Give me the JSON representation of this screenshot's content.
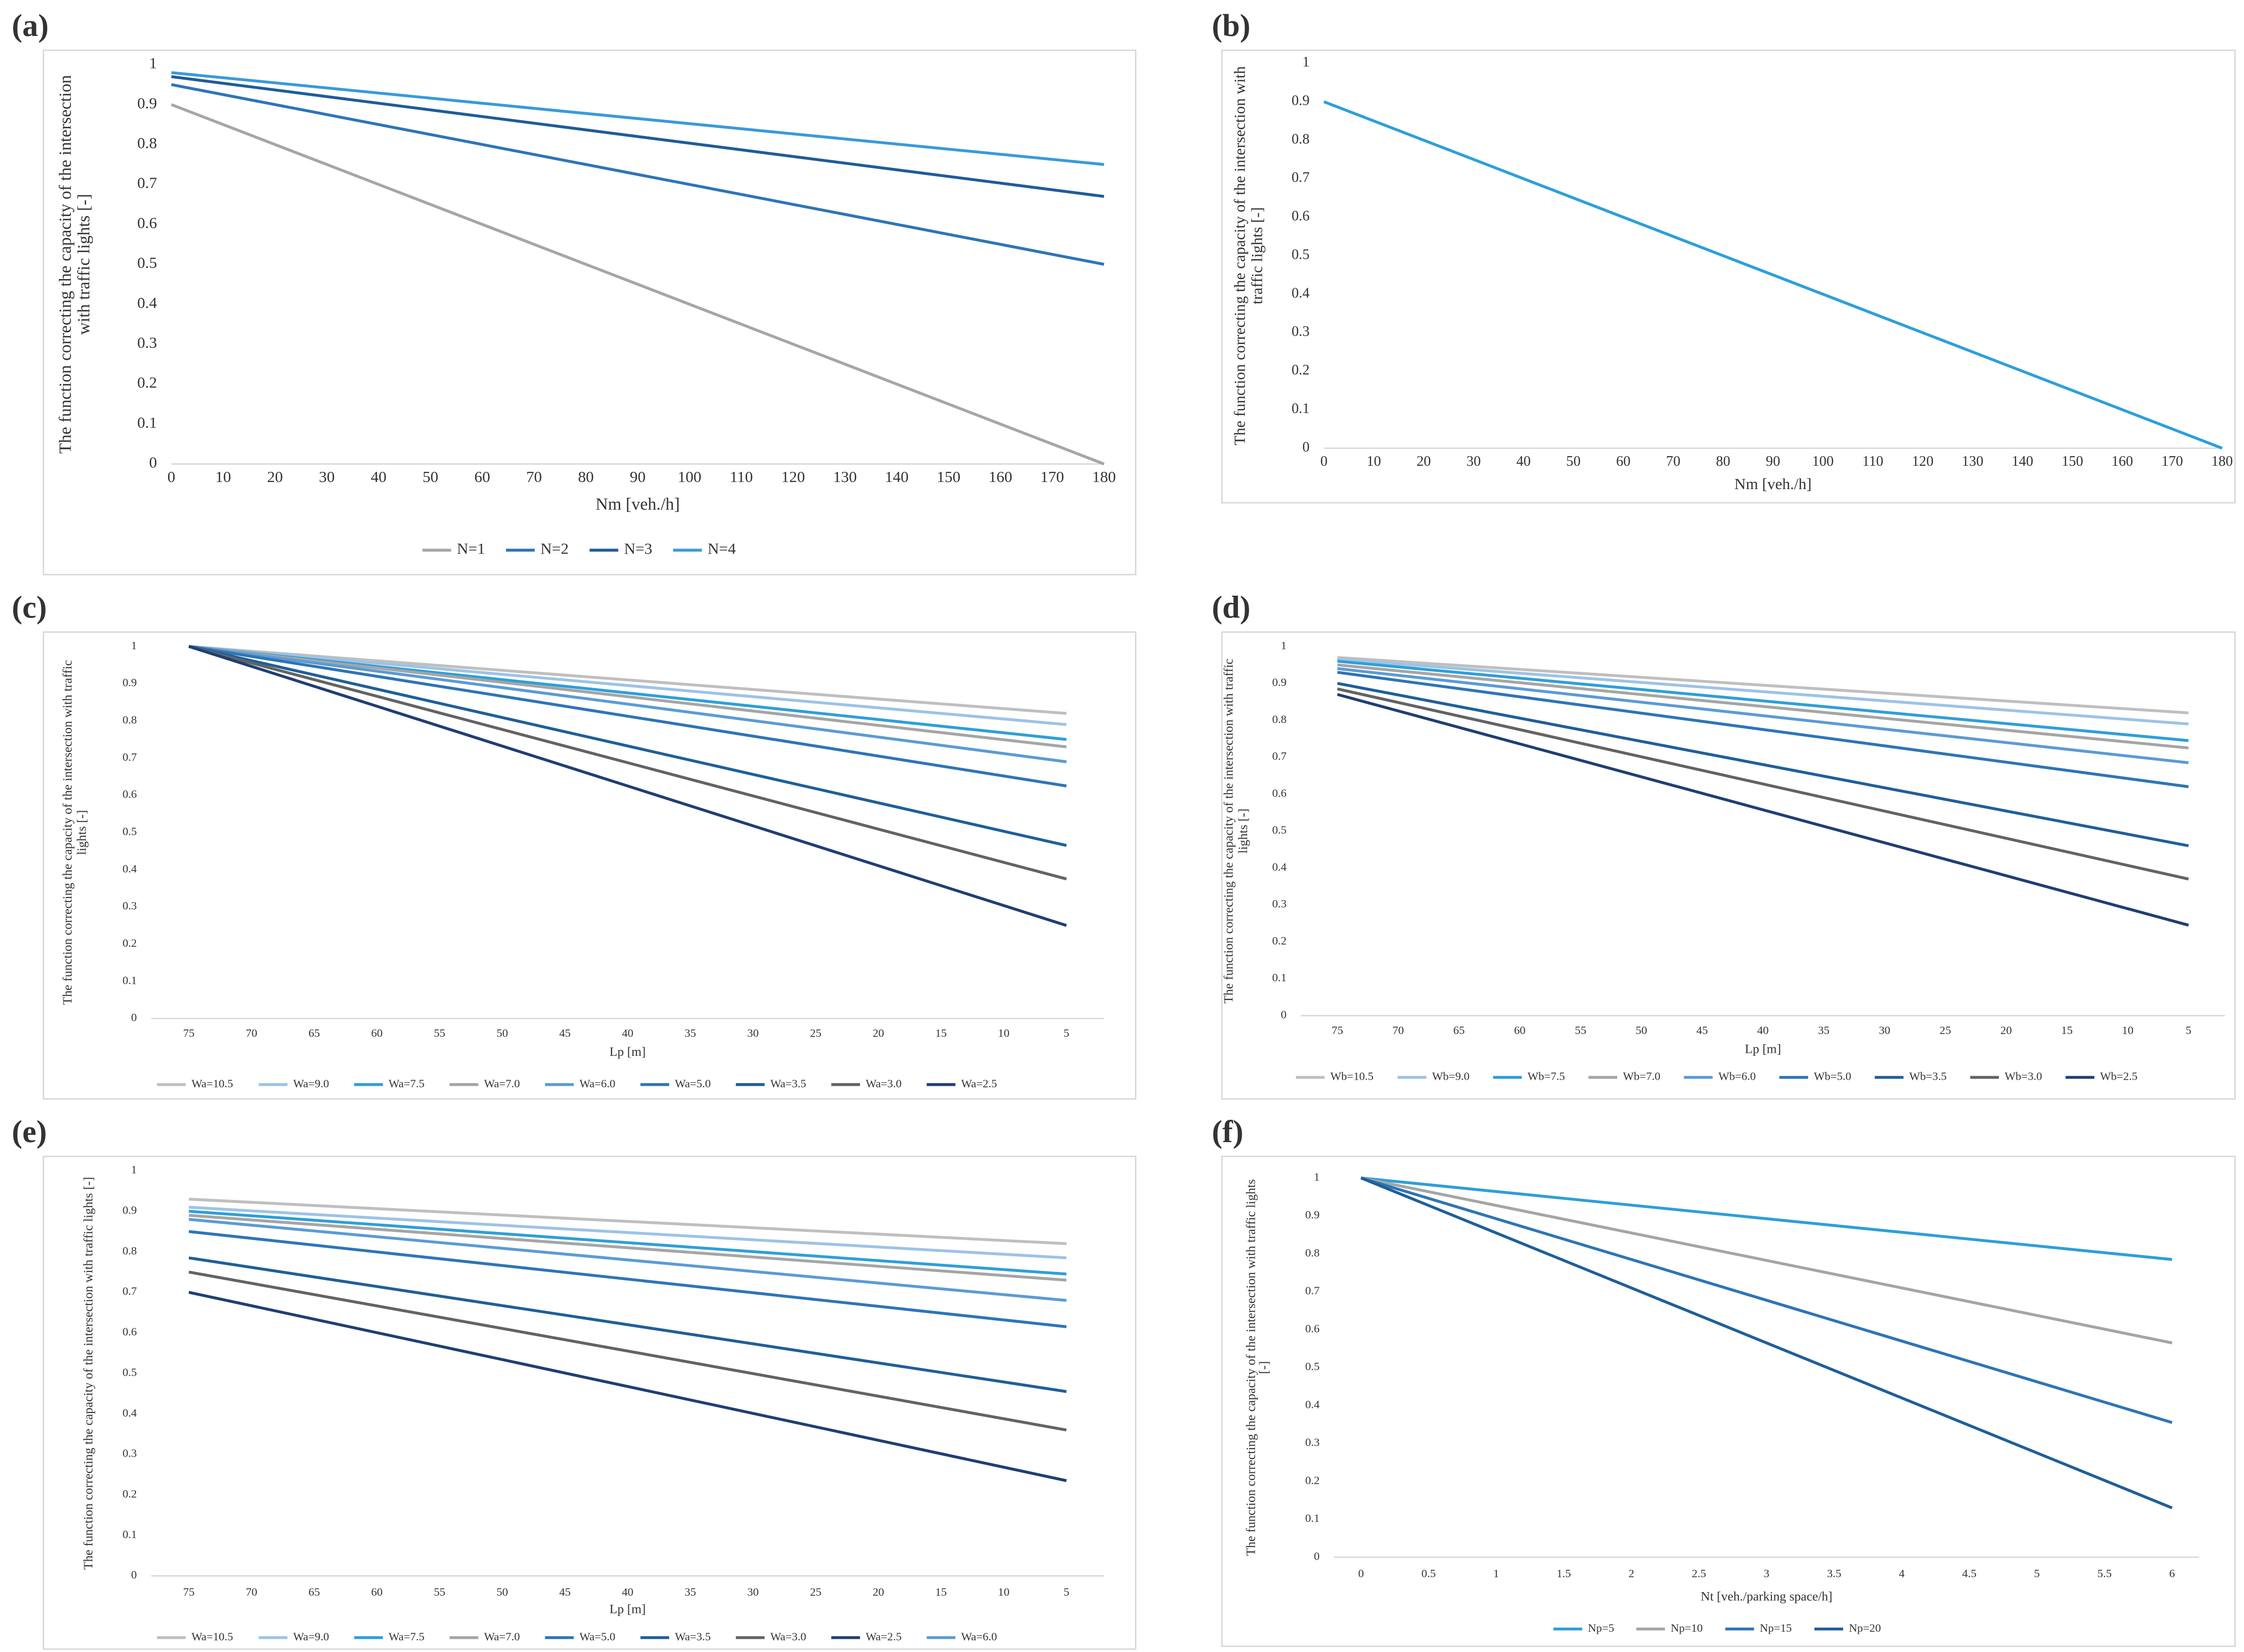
{
  "chart_data": [
    {
      "type": "line",
      "label": "(a)",
      "y_label": "The function correcting the capacity of the intersection with traffic lights [-]",
      "x_label": "Nm [veh./h]",
      "x": [
        0,
        180
      ],
      "xlim": [
        0,
        180
      ],
      "xticks": [
        0,
        10,
        20,
        30,
        40,
        50,
        60,
        70,
        80,
        90,
        100,
        110,
        120,
        130,
        140,
        150,
        160,
        170,
        180
      ],
      "ylim": [
        0,
        1
      ],
      "yticks": [
        0,
        0.1,
        0.2,
        0.3,
        0.4,
        0.5,
        0.6,
        0.7,
        0.8,
        0.9,
        1
      ],
      "series": [
        {
          "name": "N=1",
          "color": "#a6a6a6",
          "values": [
            0.9,
            0
          ]
        },
        {
          "name": "N=2",
          "color": "#2e75b6",
          "values": [
            0.95,
            0.5
          ]
        },
        {
          "name": "N=3",
          "color": "#1f5c99",
          "values": [
            0.97,
            0.67
          ]
        },
        {
          "name": "N=4",
          "color": "#3a9ad9",
          "values": [
            0.98,
            0.75
          ]
        }
      ]
    },
    {
      "type": "line",
      "label": "(b)",
      "y_label": "The function correcting the capacity of the intersection with traffic lights [-]",
      "x_label": "Nm [veh./h]",
      "x": [
        0,
        180
      ],
      "xlim": [
        0,
        180
      ],
      "xticks": [
        0,
        10,
        20,
        30,
        40,
        50,
        60,
        70,
        80,
        90,
        100,
        110,
        120,
        130,
        140,
        150,
        160,
        170,
        180
      ],
      "ylim": [
        0,
        1
      ],
      "yticks": [
        0,
        0.1,
        0.2,
        0.3,
        0.4,
        0.5,
        0.6,
        0.7,
        0.8,
        0.9,
        1
      ],
      "color": "#2e9fd9",
      "values": [
        0.9,
        0
      ]
    },
    {
      "type": "line",
      "label": "(c)",
      "y_label": "The function correcting the capacity of the intersection with traffic lights [-]",
      "x_label": "Lp [m]",
      "x": [
        75,
        5
      ],
      "xlim": [
        78,
        2
      ],
      "xticks": [
        75,
        70,
        65,
        60,
        55,
        50,
        45,
        40,
        35,
        30,
        25,
        20,
        15,
        10,
        5
      ],
      "ylim": [
        0,
        1
      ],
      "yticks": [
        0,
        0.1,
        0.2,
        0.3,
        0.4,
        0.5,
        0.6,
        0.7,
        0.8,
        0.9,
        1
      ],
      "series": [
        {
          "name": "Wa=10.5",
          "color": "#bfbfbf",
          "values": [
            1,
            0.82
          ]
        },
        {
          "name": "Wa=9.0",
          "color": "#9dc3e6",
          "values": [
            1,
            0.79
          ]
        },
        {
          "name": "Wa=7.5",
          "color": "#2e9fd9",
          "values": [
            1,
            0.75
          ]
        },
        {
          "name": "Wa=7.0",
          "color": "#a5a5a5",
          "values": [
            1,
            0.73
          ]
        },
        {
          "name": "Wa=6.0",
          "color": "#5b9bd5",
          "values": [
            1,
            0.69
          ]
        },
        {
          "name": "Wa=5.0",
          "color": "#2e75b6",
          "values": [
            1,
            0.625
          ]
        },
        {
          "name": "Wa=3.5",
          "color": "#1f5f99",
          "values": [
            1,
            0.465
          ]
        },
        {
          "name": "Wa=3.0",
          "color": "#636363",
          "values": [
            1,
            0.375
          ]
        },
        {
          "name": "Wa=2.5",
          "color": "#1f3f73",
          "values": [
            1,
            0.25
          ]
        }
      ]
    },
    {
      "type": "line",
      "label": "(d)",
      "y_label": "The function correcting the capacity of the intersection with traffic lights [-]",
      "x_label": "Lp [m]",
      "x": [
        75,
        5
      ],
      "xlim": [
        78,
        2
      ],
      "xticks": [
        75,
        70,
        65,
        60,
        55,
        50,
        45,
        40,
        35,
        30,
        25,
        20,
        15,
        10,
        5
      ],
      "ylim": [
        0,
        1
      ],
      "yticks": [
        0,
        0.1,
        0.2,
        0.3,
        0.4,
        0.5,
        0.6,
        0.7,
        0.8,
        0.9,
        1
      ],
      "series": [
        {
          "name": "Wb=10.5",
          "color": "#bfbfbf",
          "values": [
            0.97,
            0.82
          ]
        },
        {
          "name": "Wb=9.0",
          "color": "#9dc3e6",
          "values": [
            0.965,
            0.79
          ]
        },
        {
          "name": "Wb=7.5",
          "color": "#2e9fd9",
          "values": [
            0.96,
            0.745
          ]
        },
        {
          "name": "Wb=7.0",
          "color": "#a5a5a5",
          "values": [
            0.95,
            0.725
          ]
        },
        {
          "name": "Wb=6.0",
          "color": "#5b9bd5",
          "values": [
            0.94,
            0.685
          ]
        },
        {
          "name": "Wb=5.0",
          "color": "#2e75b6",
          "values": [
            0.93,
            0.62
          ]
        },
        {
          "name": "Wb=3.5",
          "color": "#1f5f99",
          "values": [
            0.9,
            0.46
          ]
        },
        {
          "name": "Wb=3.0",
          "color": "#636363",
          "values": [
            0.885,
            0.37
          ]
        },
        {
          "name": "Wb=2.5",
          "color": "#1f3f73",
          "values": [
            0.87,
            0.245
          ]
        }
      ]
    },
    {
      "type": "line",
      "label": "(e)",
      "y_label": "The function correcting the capacity of the intersection with traffic lights [-]",
      "x_label": "Lp [m]",
      "x": [
        75,
        5
      ],
      "xlim": [
        78,
        2
      ],
      "xticks": [
        75,
        70,
        65,
        60,
        55,
        50,
        45,
        40,
        35,
        30,
        25,
        20,
        15,
        10,
        5
      ],
      "ylim": [
        0,
        1
      ],
      "yticks": [
        0,
        0.1,
        0.2,
        0.3,
        0.4,
        0.5,
        0.6,
        0.7,
        0.8,
        0.9,
        1
      ],
      "series": [
        {
          "name": "Wa=10.5",
          "color": "#bfbfbf",
          "values": [
            0.93,
            0.82
          ]
        },
        {
          "name": "Wa=9.0",
          "color": "#9dc3e6",
          "values": [
            0.91,
            0.785
          ]
        },
        {
          "name": "Wa=7.5",
          "color": "#2e9fd9",
          "values": [
            0.9,
            0.745
          ]
        },
        {
          "name": "Wa=7.0",
          "color": "#a5a5a5",
          "values": [
            0.89,
            0.73
          ]
        },
        {
          "name": "Wa=5.0",
          "color": "#2e75b6",
          "values": [
            0.85,
            0.615
          ]
        },
        {
          "name": "Wa=3.5",
          "color": "#1f5f99",
          "values": [
            0.785,
            0.455
          ]
        },
        {
          "name": "Wa=3.0",
          "color": "#636363",
          "values": [
            0.75,
            0.36
          ]
        },
        {
          "name": "Wa=2.5",
          "color": "#1f3f73",
          "values": [
            0.7,
            0.235
          ]
        },
        {
          "name": "Wa=6.0",
          "color": "#5b9bd5",
          "values": [
            0.88,
            0.68
          ]
        }
      ]
    },
    {
      "type": "line",
      "label": "(f)",
      "y_label": "The function correcting the capacity of the intersection with traffic lights [-]",
      "x_label": "Nt [veh./parking space/h]",
      "x": [
        0,
        6
      ],
      "xlim": [
        -0.2,
        6.2
      ],
      "xticks": [
        0,
        0.5,
        1,
        1.5,
        2,
        2.5,
        3,
        3.5,
        4,
        4.5,
        5,
        5.5,
        6
      ],
      "ylim": [
        0,
        1
      ],
      "yticks": [
        0,
        0.1,
        0.2,
        0.3,
        0.4,
        0.5,
        0.6,
        0.7,
        0.8,
        0.9,
        1
      ],
      "series": [
        {
          "name": "Np=5",
          "color": "#2e9fd9",
          "values": [
            1,
            0.785
          ]
        },
        {
          "name": "Np=10",
          "color": "#a5a5a5",
          "values": [
            1,
            0.565
          ]
        },
        {
          "name": "Np=15",
          "color": "#2e75b6",
          "values": [
            1,
            0.355
          ]
        },
        {
          "name": "Np=20",
          "color": "#1f5f99",
          "values": [
            1,
            0.13
          ]
        }
      ]
    }
  ]
}
